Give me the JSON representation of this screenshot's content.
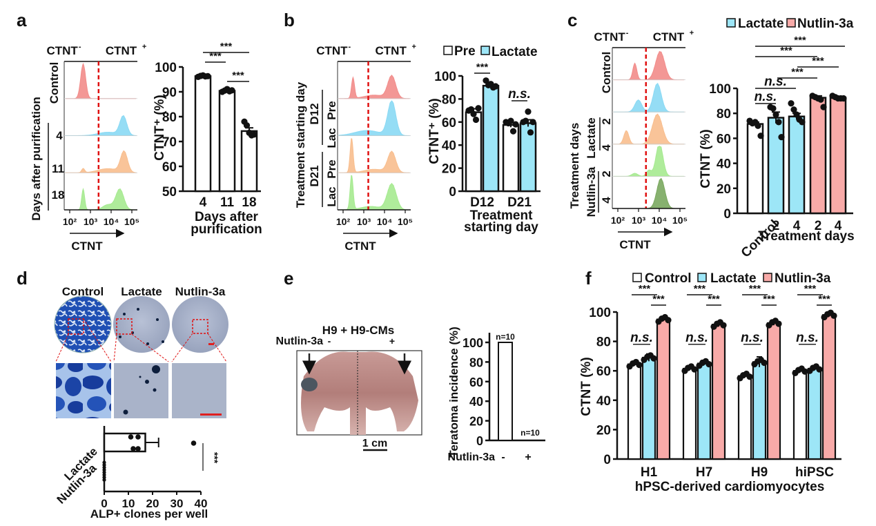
{
  "panels": {
    "a": {
      "label": "a"
    },
    "b": {
      "label": "b"
    },
    "c": {
      "label": "c"
    },
    "d": {
      "label": "d"
    },
    "e": {
      "label": "e"
    },
    "f": {
      "label": "f"
    }
  },
  "colors": {
    "control": "#ffffff",
    "lactate": "#9de6f7",
    "nutlin": "#f8aaa8",
    "flow_red": "#f28c8a",
    "flow_blue": "#8ad9f4",
    "flow_orange": "#f8be8e",
    "flow_green": "#a6ea90",
    "flow_darkgreen": "#7aa85f",
    "gate_line": "#e01010",
    "scale_bar": "#e02020"
  },
  "flow_common": {
    "neg_label": "CTNT",
    "neg_sup": "-",
    "pos_label": "CTNT",
    "pos_sup": "+",
    "x_ticks": [
      "10²",
      "10³",
      "10⁴",
      "10⁵"
    ],
    "x_label": "CTNT"
  },
  "flow_a": {
    "y_group_label": "Days after purification",
    "rows": [
      "Control",
      "4",
      "11",
      "18"
    ]
  },
  "flow_b": {
    "y_group_label": "Treatment starting day",
    "groups": [
      "D12",
      "D21"
    ],
    "rows": [
      "Pre",
      "Lac",
      "Pre",
      "Lac"
    ]
  },
  "flow_c": {
    "y_group_label": "Treatment days",
    "groups": [
      "Lactate",
      "Nutlin-3a"
    ],
    "rows": [
      "Control",
      "2",
      "4",
      "2",
      "4"
    ]
  },
  "chart_data": [
    {
      "id": "a",
      "type": "bar",
      "categories": [
        "4",
        "11",
        "18"
      ],
      "values": [
        96.3,
        90.4,
        74.2
      ],
      "errors": [
        0.3,
        0.6,
        1.3
      ],
      "points": [
        [
          96,
          96.4,
          96.6,
          96.2,
          96.3
        ],
        [
          90,
          90.5,
          91.1,
          90.2,
          90.6
        ],
        [
          78,
          76.5,
          73.5,
          72.5,
          72.8
        ]
      ],
      "title": "",
      "xlabel": "Days after purification",
      "ylabel": "CTNT⁺ (%)",
      "ylim": [
        50,
        100
      ],
      "yticks": [
        50,
        60,
        70,
        80,
        90,
        100
      ],
      "significance": [
        {
          "from": 0,
          "to": 1,
          "label": "***"
        },
        {
          "from": 1,
          "to": 2,
          "label": "***"
        },
        {
          "from": 0,
          "to": 2,
          "label": "***"
        }
      ]
    },
    {
      "id": "b",
      "type": "bar",
      "categories": [
        "D12",
        "D21"
      ],
      "series": [
        {
          "name": "Pre",
          "values": [
            68.5,
            57.5
          ],
          "errors": [
            3,
            2
          ],
          "points": [
            [
              70,
              71,
              67,
              62,
              72
            ],
            [
              60,
              59,
              61,
              52,
              58
            ]
          ]
        },
        {
          "name": "Lactate",
          "values": [
            91.5,
            59
          ],
          "errors": [
            1,
            3
          ],
          "points": [
            [
              96,
              92,
              93,
              90,
              91
            ],
            [
              60,
              61,
              69,
              51,
              60
            ]
          ]
        }
      ],
      "xlabel": "Treatment starting day",
      "ylabel": "CTNT⁺ (%)",
      "ylim": [
        0,
        100
      ],
      "yticks": [
        0,
        20,
        40,
        60,
        80,
        100
      ],
      "legend_position": "top",
      "significance": [
        {
          "category": 0,
          "label": "***",
          "italic": false
        },
        {
          "category": 1,
          "label": "n.s.",
          "italic": true
        }
      ]
    },
    {
      "id": "c",
      "type": "bar",
      "categories": [
        "Control",
        "2",
        "4",
        "2",
        "4"
      ],
      "groups": [
        "Control",
        "Lactate",
        "Lactate",
        "Nutlin-3a",
        "Nutlin-3a"
      ],
      "values": [
        71.5,
        76.5,
        77.5,
        92.5,
        92.5
      ],
      "errors": [
        1.5,
        4.5,
        2.5,
        1.5,
        0.6
      ],
      "points": [
        [
          74,
          72,
          73,
          70,
          62
        ],
        [
          85,
          84,
          79,
          73,
          61
        ],
        [
          88,
          83,
          79,
          75,
          73
        ],
        [
          94,
          93,
          92,
          91,
          85
        ],
        [
          94,
          93,
          92,
          92,
          92
        ]
      ],
      "xlabel": "Treatment days",
      "ylabel": "CTNT (%)",
      "ylim": [
        0,
        100
      ],
      "yticks": [
        0,
        20,
        40,
        60,
        80,
        100
      ],
      "legend": [
        "Lactate",
        "Nutlin-3a"
      ],
      "legend_position": "top",
      "significance": [
        {
          "from": 0,
          "to": 1,
          "label": "n.s.",
          "italic": true
        },
        {
          "from": 0,
          "to": 2,
          "label": "n.s.",
          "italic": true
        },
        {
          "from": 1,
          "to": 3,
          "label": "***"
        },
        {
          "from": 2,
          "to": 4,
          "label": "***"
        },
        {
          "from": 0,
          "to": 3,
          "label": "***"
        },
        {
          "from": 0,
          "to": 4,
          "label": "***"
        }
      ]
    },
    {
      "id": "d",
      "type": "bar",
      "orientation": "horizontal",
      "categories": [
        "Lactate",
        "Nutlin-3a"
      ],
      "values": [
        17,
        0
      ],
      "errors": [
        5.5,
        0
      ],
      "points": [
        [
          11,
          14,
          12,
          14,
          37
        ],
        [
          0,
          0,
          0,
          0,
          0,
          0,
          0,
          0
        ]
      ],
      "xlabel": "ALP+ clones per well",
      "xlim": [
        0,
        40
      ],
      "xticks": [
        0,
        10,
        20,
        30,
        40
      ],
      "significance": [
        {
          "label": "***"
        }
      ]
    },
    {
      "id": "e",
      "type": "bar",
      "categories": [
        "-",
        "+"
      ],
      "values": [
        100,
        0
      ],
      "bar_labels": [
        "n=10",
        "n=10"
      ],
      "xlabel": "Nutlin-3a",
      "ylabel": "Teratoma incidence (%)",
      "ylim": [
        0,
        100
      ],
      "yticks": [
        0,
        20,
        40,
        60,
        80,
        100
      ]
    },
    {
      "id": "f",
      "type": "bar",
      "categories": [
        "H1",
        "H7",
        "H9",
        "hiPSC"
      ],
      "series": [
        {
          "name": "Control",
          "values": [
            64.5,
            61.5,
            56.5,
            60
          ],
          "errors": [
            0.5,
            1,
            1,
            0.5
          ]
        },
        {
          "name": "Lactate",
          "values": [
            69,
            65,
            66,
            61.5
          ],
          "errors": [
            2.5,
            0.5,
            3.5,
            0.5
          ]
        },
        {
          "name": "Nutlin-3a",
          "values": [
            95,
            91.5,
            92.5,
            98
          ],
          "errors": [
            1,
            1.5,
            1.5,
            0.3
          ]
        }
      ],
      "xlabel": "hPSC-derived cardiomyocytes",
      "ylabel": "CTNT (%)",
      "ylim": [
        0,
        100
      ],
      "yticks": [
        0,
        20,
        40,
        60,
        80,
        100
      ],
      "legend_position": "top",
      "significance_per_category": [
        {
          "pair": "Control-Lactate",
          "label": "n.s.",
          "italic": true
        },
        {
          "pair": "Control-Nutlin-3a",
          "label": "***"
        },
        {
          "pair": "Lactate-Nutlin-3a",
          "label": "***"
        }
      ]
    }
  ],
  "panel_d": {
    "conditions": [
      "Control",
      "Lactate",
      "Nutlin-3a"
    ]
  },
  "panel_e": {
    "title": "H9 + H9-CMs",
    "treatment_label": "Nutlin-3a",
    "minus": "-",
    "plus": "+",
    "scale_bar_label": "1 cm"
  }
}
